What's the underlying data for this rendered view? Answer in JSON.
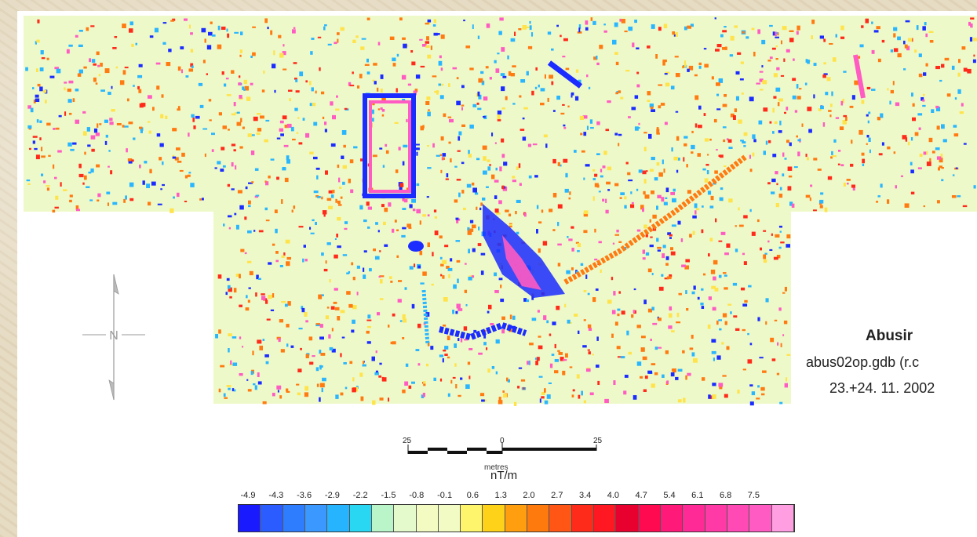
{
  "site": {
    "title": "Abusir",
    "file": "abus02op.gdb (r.c",
    "date": "23.+24. 11. 2002"
  },
  "north_arrow": {
    "label": "N"
  },
  "scale": {
    "unit": "metres",
    "ticks": [
      "25",
      "0",
      "25"
    ]
  },
  "legend": {
    "unit": "nT/m",
    "values": [
      "-4.9",
      "-4.3",
      "-3.6",
      "-2.9",
      "-2.2",
      "-1.5",
      "-0.8",
      "-0.1",
      "0.6",
      "1.3",
      "2.0",
      "2.7",
      "3.4",
      "4.0",
      "4.7",
      "5.4",
      "6.1",
      "6.8",
      "7.5"
    ],
    "colors": [
      "#1a1aff",
      "#2a5cff",
      "#2f7dff",
      "#3a98ff",
      "#26b4ff",
      "#2ad7f2",
      "#b9f5c9",
      "#e4f9cc",
      "#f3fbc3",
      "#f1fbc3",
      "#fff56c",
      "#ffd21a",
      "#ff9f10",
      "#ff7a0c",
      "#ff5515",
      "#ff2b1a",
      "#ff1722",
      "#e8002e",
      "#ff0a50",
      "#ff1a7a",
      "#ff2a95",
      "#ff3aa6",
      "#ff49b4",
      "#ff5bc2",
      "#ff9ee0"
    ]
  },
  "map_colors": {
    "background": "#eef9c9",
    "blue": "#1a2cff",
    "cyan": "#29b6ff",
    "orange": "#ff7a10",
    "red": "#ff2a1a",
    "pink": "#ff5bc2",
    "yellow": "#ffe34a"
  }
}
